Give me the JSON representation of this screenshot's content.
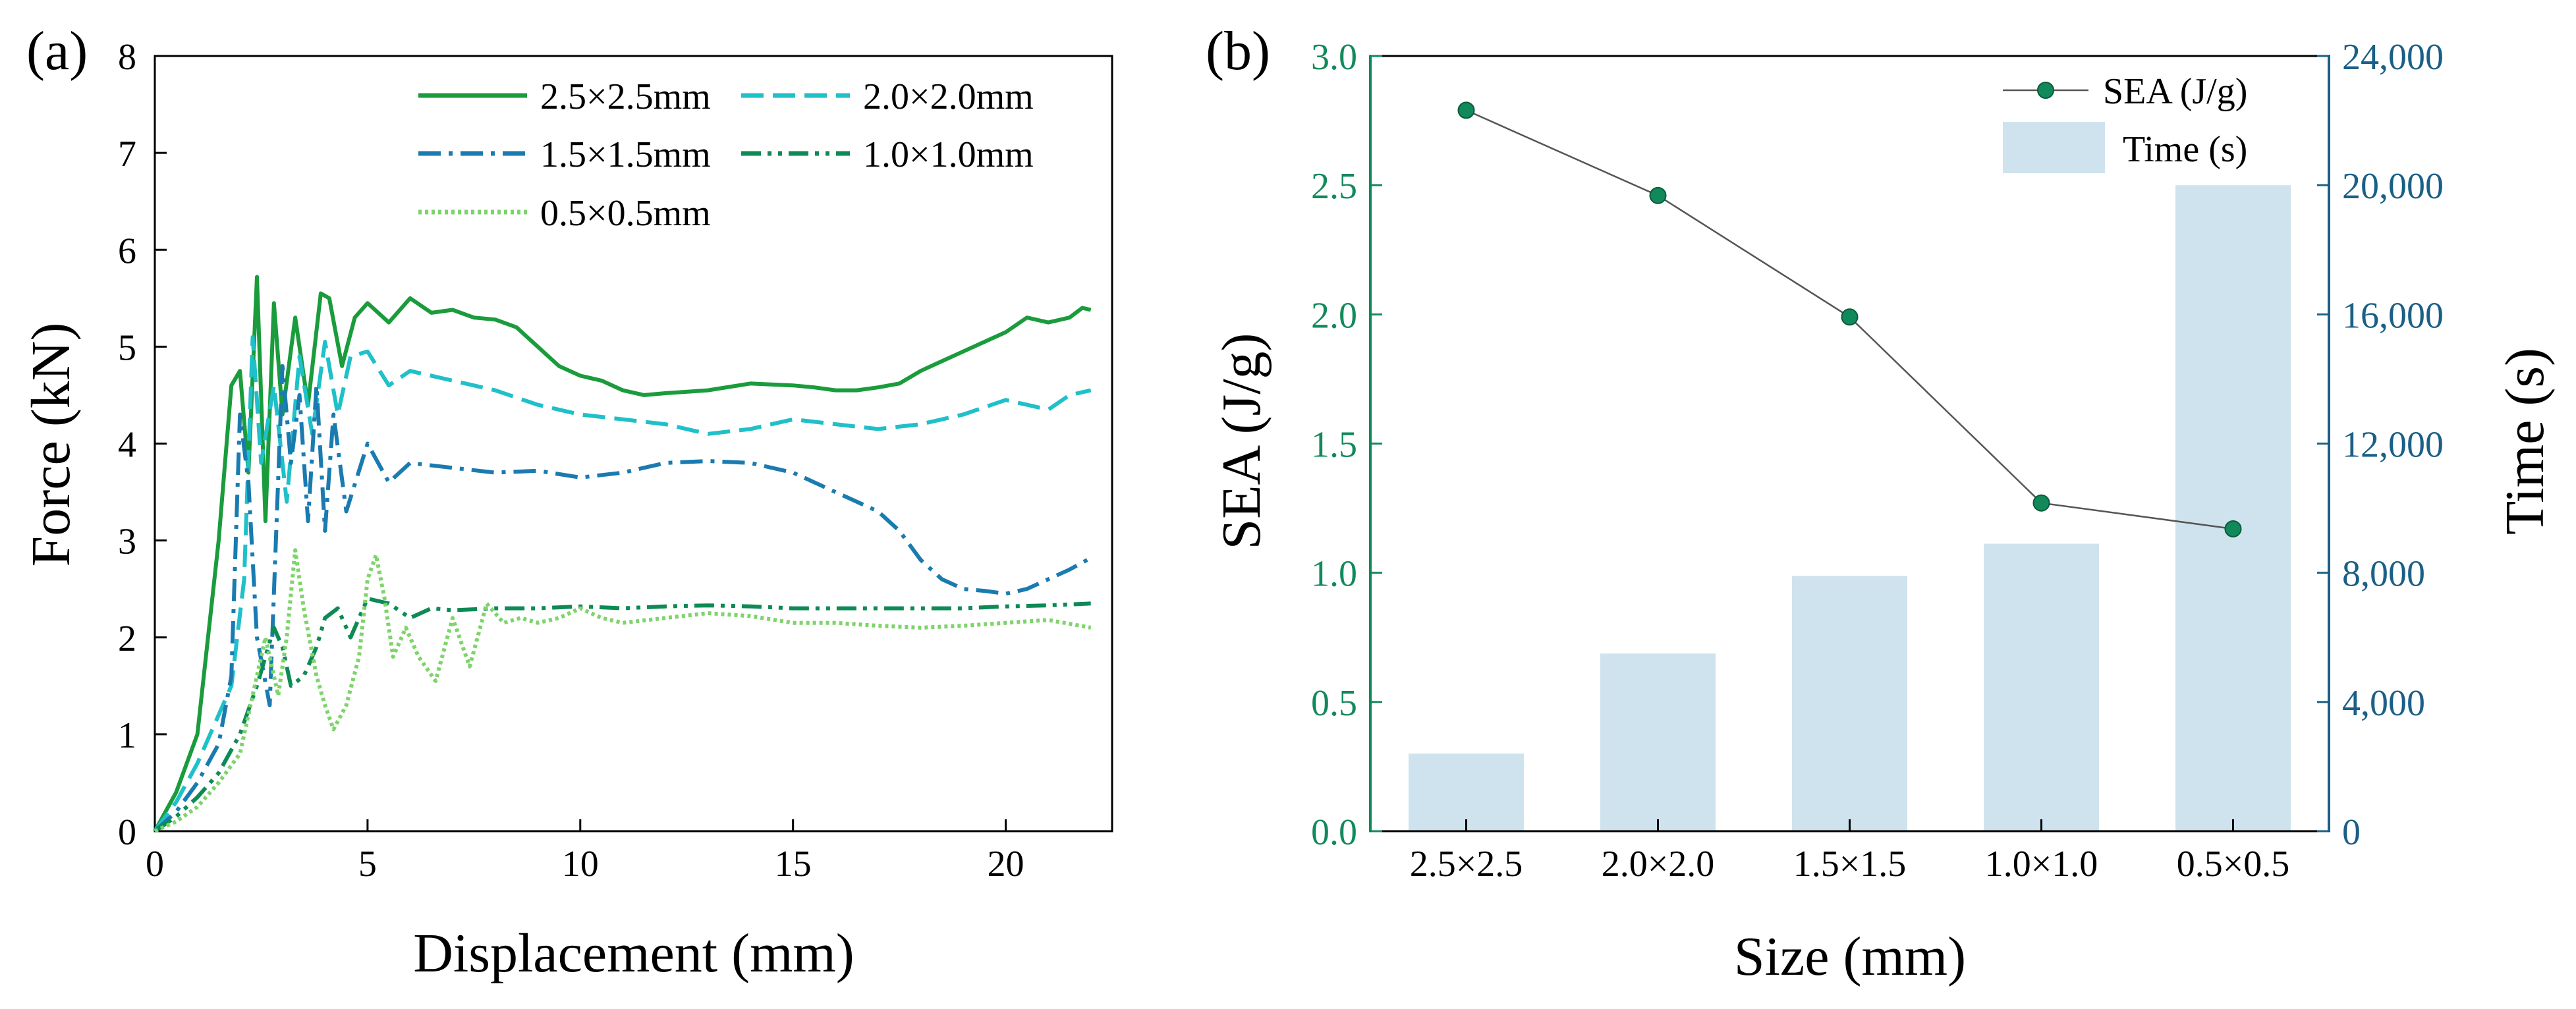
{
  "panel_a": {
    "label": "(a)"
  },
  "panel_b": {
    "label": "(b)"
  },
  "colors": {
    "s25": "#1a9c3c",
    "s20": "#1fc0c9",
    "s15": "#1a7bb0",
    "s10": "#0d8a55",
    "s05": "#7ed46b",
    "sea": "#12895b",
    "bar": "#cfe3ee",
    "time_axis": "#1a5f86",
    "sea_axis": "#12895b"
  },
  "chart_data": [
    {
      "type": "line",
      "title": "",
      "xlabel": "Displacement (mm)",
      "ylabel": "Force (kN)",
      "xlim": [
        0,
        22.5
      ],
      "ylim": [
        0,
        8
      ],
      "xticks": [
        0,
        5,
        10,
        15,
        20
      ],
      "yticks": [
        0,
        1,
        2,
        3,
        4,
        5,
        6,
        7,
        8
      ],
      "legend_position": "top-right",
      "series": [
        {
          "name": "2.5×2.5mm",
          "style": "solid",
          "color_key": "s25",
          "x": [
            0,
            0.5,
            1.0,
            1.5,
            1.8,
            2.0,
            2.2,
            2.4,
            2.6,
            2.8,
            3.0,
            3.3,
            3.6,
            3.9,
            4.1,
            4.4,
            4.7,
            5.0,
            5.5,
            6.0,
            6.5,
            7.0,
            7.5,
            8.0,
            8.5,
            9.0,
            9.5,
            10.0,
            10.5,
            11.0,
            11.5,
            12.0,
            13.0,
            14.0,
            15.0,
            15.5,
            16.0,
            16.5,
            17.0,
            17.5,
            18.0,
            18.5,
            19.0,
            19.5,
            20.0,
            20.5,
            21.0,
            21.5,
            21.8,
            22.0
          ],
          "y": [
            0,
            0.4,
            1.0,
            3.0,
            4.6,
            4.75,
            3.7,
            5.72,
            3.2,
            5.45,
            4.3,
            5.3,
            4.4,
            5.55,
            5.5,
            4.8,
            5.3,
            5.45,
            5.25,
            5.5,
            5.35,
            5.38,
            5.3,
            5.28,
            5.2,
            5.0,
            4.8,
            4.7,
            4.65,
            4.55,
            4.5,
            4.52,
            4.55,
            4.62,
            4.6,
            4.58,
            4.55,
            4.55,
            4.58,
            4.62,
            4.75,
            4.85,
            4.95,
            5.05,
            5.15,
            5.3,
            5.25,
            5.3,
            5.4,
            5.38
          ]
        },
        {
          "name": "2.0×2.0mm",
          "style": "dash",
          "color_key": "s20",
          "x": [
            0,
            0.5,
            1.0,
            1.5,
            1.8,
            2.1,
            2.3,
            2.5,
            2.8,
            3.1,
            3.4,
            3.7,
            4.0,
            4.3,
            4.6,
            5.0,
            5.5,
            6.0,
            7.0,
            8.0,
            9.0,
            10.0,
            11.0,
            12.0,
            13.0,
            14.0,
            15.0,
            16.0,
            17.0,
            18.0,
            19.0,
            20.0,
            20.5,
            21.0,
            21.5,
            22.0
          ],
          "y": [
            0,
            0.3,
            0.7,
            1.2,
            1.5,
            2.6,
            5.1,
            3.8,
            4.6,
            3.4,
            4.9,
            4.1,
            5.05,
            4.3,
            4.9,
            4.95,
            4.6,
            4.75,
            4.65,
            4.55,
            4.4,
            4.3,
            4.25,
            4.2,
            4.1,
            4.15,
            4.25,
            4.2,
            4.15,
            4.2,
            4.3,
            4.45,
            4.4,
            4.35,
            4.5,
            4.55
          ]
        },
        {
          "name": "1.5×1.5mm",
          "style": "dashdot",
          "color_key": "s15",
          "x": [
            0,
            0.5,
            1.0,
            1.5,
            1.8,
            2.0,
            2.2,
            2.4,
            2.7,
            3.0,
            3.2,
            3.4,
            3.6,
            3.8,
            4.0,
            4.2,
            4.5,
            5.0,
            5.5,
            6.0,
            7.0,
            8.0,
            9.0,
            10.0,
            11.0,
            12.0,
            13.0,
            14.0,
            15.0,
            16.0,
            17.0,
            17.5,
            18.0,
            18.5,
            19.0,
            19.5,
            20.0,
            20.5,
            21.0,
            21.5,
            22.0
          ],
          "y": [
            0,
            0.2,
            0.5,
            0.9,
            1.6,
            4.3,
            3.6,
            2.0,
            1.3,
            4.8,
            3.8,
            4.5,
            3.2,
            4.6,
            3.1,
            4.3,
            3.3,
            4.0,
            3.6,
            3.8,
            3.75,
            3.7,
            3.72,
            3.65,
            3.7,
            3.8,
            3.82,
            3.8,
            3.7,
            3.5,
            3.3,
            3.1,
            2.8,
            2.6,
            2.5,
            2.48,
            2.45,
            2.5,
            2.6,
            2.7,
            2.82
          ]
        },
        {
          "name": "1.0×1.0mm",
          "style": "dashdotdot",
          "color_key": "s10",
          "x": [
            0,
            0.5,
            1.0,
            1.5,
            2.0,
            2.4,
            2.8,
            3.0,
            3.2,
            3.5,
            3.8,
            4.0,
            4.3,
            4.6,
            5.0,
            5.5,
            6.0,
            6.5,
            7.0,
            8.0,
            9.0,
            10.0,
            11.0,
            12.0,
            13.0,
            14.0,
            15.0,
            16.0,
            17.0,
            18.0,
            19.0,
            20.0,
            21.0,
            22.0
          ],
          "y": [
            0,
            0.15,
            0.35,
            0.6,
            1.0,
            1.5,
            2.1,
            1.9,
            1.5,
            1.6,
            1.9,
            2.2,
            2.3,
            2.0,
            2.4,
            2.35,
            2.2,
            2.3,
            2.28,
            2.3,
            2.3,
            2.32,
            2.3,
            2.32,
            2.33,
            2.32,
            2.3,
            2.3,
            2.3,
            2.3,
            2.3,
            2.32,
            2.33,
            2.35
          ]
        },
        {
          "name": "0.5×0.5mm",
          "style": "dot",
          "color_key": "s05",
          "x": [
            0,
            0.5,
            1.0,
            1.5,
            2.0,
            2.3,
            2.6,
            2.9,
            3.1,
            3.3,
            3.5,
            3.8,
            4.0,
            4.2,
            4.5,
            4.8,
            5.0,
            5.2,
            5.4,
            5.6,
            5.9,
            6.2,
            6.6,
            7.0,
            7.4,
            7.8,
            8.2,
            8.6,
            9.0,
            9.5,
            10.0,
            10.5,
            11.0,
            12.0,
            13.0,
            14.0,
            15.0,
            16.0,
            17.0,
            18.0,
            19.0,
            20.0,
            21.0,
            22.0
          ],
          "y": [
            0,
            0.1,
            0.25,
            0.5,
            0.8,
            1.4,
            2.0,
            1.4,
            2.0,
            2.9,
            2.3,
            1.6,
            1.3,
            1.05,
            1.3,
            1.8,
            2.6,
            2.85,
            2.4,
            1.8,
            2.1,
            1.8,
            1.55,
            2.2,
            1.7,
            2.35,
            2.15,
            2.2,
            2.15,
            2.2,
            2.3,
            2.2,
            2.15,
            2.2,
            2.25,
            2.22,
            2.15,
            2.15,
            2.12,
            2.1,
            2.12,
            2.15,
            2.18,
            2.1
          ]
        }
      ]
    },
    {
      "type": "bar+line",
      "title": "",
      "xlabel": "Size (mm)",
      "ylabel_left": "SEA (J/g)",
      "ylabel_right": "Time (s)",
      "categories": [
        "2.5×2.5",
        "2.0×2.0",
        "1.5×1.5",
        "1.0×1.0",
        "0.5×0.5"
      ],
      "ylim_left": [
        0,
        3.0
      ],
      "ylim_right": [
        0,
        24000
      ],
      "yticks_left": [
        "0.0",
        "0.5",
        "1.0",
        "1.5",
        "2.0",
        "2.5",
        "3.0"
      ],
      "yticks_right": [
        "0",
        "4,000",
        "8,000",
        "12,000",
        "16,000",
        "20,000",
        "24,000"
      ],
      "legend_position": "top-right",
      "series": [
        {
          "name": "SEA (J/g)",
          "type": "line",
          "axis": "left",
          "values": [
            2.79,
            2.46,
            1.99,
            1.27,
            1.17
          ]
        },
        {
          "name": "Time (s)",
          "type": "bar",
          "axis": "right",
          "values": [
            2400,
            5500,
            7900,
            8900,
            20000
          ]
        }
      ]
    }
  ]
}
